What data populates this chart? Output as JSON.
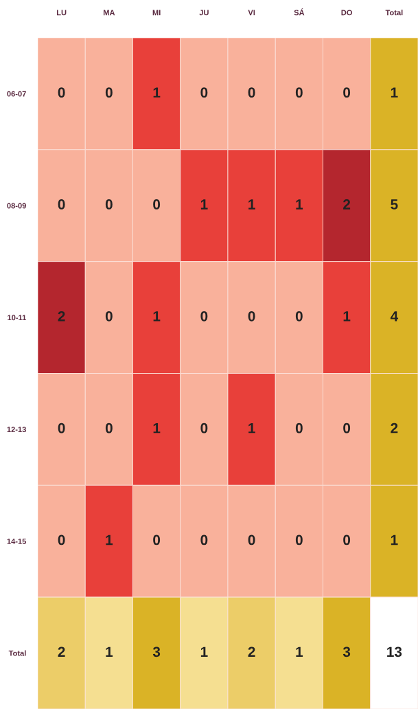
{
  "chart_data": {
    "type": "heatmap",
    "categories": [
      "LU",
      "MA",
      "MI",
      "JU",
      "VI",
      "SÁ",
      "DO",
      "Total"
    ],
    "y_categories": [
      "06-07",
      "08-09",
      "10-11",
      "12-13",
      "14-15",
      "Total"
    ],
    "cells": [
      [
        0,
        0,
        1,
        0,
        0,
        0,
        0,
        1
      ],
      [
        0,
        0,
        0,
        1,
        1,
        1,
        2,
        5
      ],
      [
        2,
        0,
        1,
        0,
        0,
        0,
        1,
        4
      ],
      [
        0,
        0,
        1,
        0,
        1,
        0,
        0,
        2
      ],
      [
        0,
        1,
        0,
        0,
        0,
        0,
        0,
        1
      ],
      [
        2,
        1,
        3,
        1,
        2,
        1,
        3,
        13
      ]
    ],
    "colors": [
      [
        "#f9b19b",
        "#f9b19b",
        "#e8403a",
        "#f9b19b",
        "#f9b19b",
        "#f9b19b",
        "#f9b19b",
        "#dab326"
      ],
      [
        "#f9b19b",
        "#f9b19b",
        "#f9b19b",
        "#e8403a",
        "#e8403a",
        "#e8403a",
        "#b4262e",
        "#dab326"
      ],
      [
        "#b4262e",
        "#f9b19b",
        "#e8403a",
        "#f9b19b",
        "#f9b19b",
        "#f9b19b",
        "#e8403a",
        "#dab326"
      ],
      [
        "#f9b19b",
        "#f9b19b",
        "#e8403a",
        "#f9b19b",
        "#e8403a",
        "#f9b19b",
        "#f9b19b",
        "#dab326"
      ],
      [
        "#f9b19b",
        "#e8403a",
        "#f9b19b",
        "#f9b19b",
        "#f9b19b",
        "#f9b19b",
        "#f9b19b",
        "#dab326"
      ],
      [
        "#eccd68",
        "#f5df91",
        "#dab326",
        "#f5df91",
        "#eccd68",
        "#f5df91",
        "#dab326",
        "#ffffff"
      ]
    ],
    "data_labels": true
  }
}
